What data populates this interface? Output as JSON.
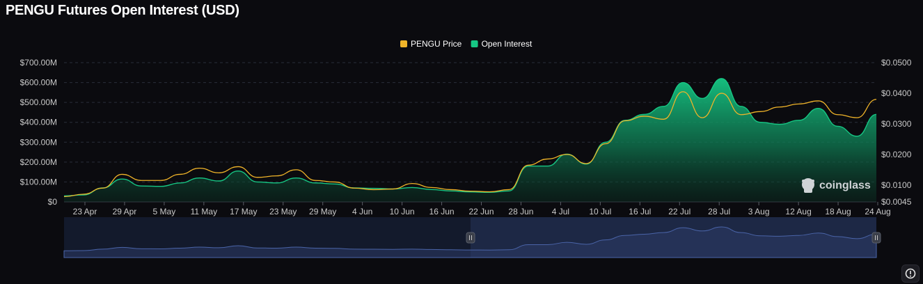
{
  "title": "PENGU Futures Open Interest (USD)",
  "watermark": "coinglass",
  "icons": {
    "watermark": "coinglass-logo-icon",
    "settings": "settings-icon"
  },
  "colors": {
    "background": "#0b0b0f",
    "price_line": "#f0b429",
    "open_interest": "#16c784",
    "navigator_fill": "#1f2a4a",
    "navigator_line": "#3a4f86"
  },
  "chart_data": {
    "type": "area",
    "title": "PENGU Futures Open Interest (USD)",
    "x_tick_labels": [
      "23 Apr",
      "29 Apr",
      "5 May",
      "11 May",
      "17 May",
      "23 May",
      "29 May",
      "4 Jun",
      "10 Jun",
      "16 Jun",
      "22 Jun",
      "28 Jun",
      "4 Jul",
      "10 Jul",
      "16 Jul",
      "22 Jul",
      "28 Jul",
      "3 Aug",
      "12 Aug",
      "18 Aug",
      "24 Aug"
    ],
    "y_left_ticks": [
      "$0",
      "$100.00M",
      "$200.00M",
      "$300.00M",
      "$400.00M",
      "$500.00M",
      "$600.00M",
      "$700.00M"
    ],
    "y_left_range": [
      0,
      700
    ],
    "y_left_unit": "M USD",
    "y_right_ticks": [
      "$0.0045",
      "$0.0100",
      "$0.0200",
      "$0.0300",
      "$0.0400",
      "$0.0500"
    ],
    "y_right_range": [
      0.0045,
      0.05
    ],
    "legend": [
      "PENGU Price",
      "Open Interest"
    ],
    "legend_position": "top-center",
    "grid": true,
    "x": [
      "20 Apr",
      "23 Apr",
      "26 Apr",
      "29 Apr",
      "2 May",
      "5 May",
      "8 May",
      "11 May",
      "14 May",
      "17 May",
      "20 May",
      "23 May",
      "26 May",
      "29 May",
      "1 Jun",
      "4 Jun",
      "7 Jun",
      "10 Jun",
      "13 Jun",
      "16 Jun",
      "19 Jun",
      "22 Jun",
      "25 Jun",
      "28 Jun",
      "1 Jul",
      "4 Jul",
      "7 Jul",
      "10 Jul",
      "13 Jul",
      "16 Jul",
      "19 Jul",
      "22 Jul",
      "25 Jul",
      "28 Jul",
      "31 Jul",
      "3 Aug",
      "6 Aug",
      "9 Aug",
      "12 Aug",
      "15 Aug",
      "18 Aug",
      "21 Aug",
      "24 Aug"
    ],
    "series": [
      {
        "name": "Open Interest",
        "axis": "left",
        "values": [
          30,
          35,
          70,
          115,
          80,
          78,
          95,
          120,
          105,
          155,
          100,
          95,
          120,
          95,
          90,
          70,
          68,
          65,
          72,
          62,
          55,
          50,
          48,
          55,
          180,
          180,
          240,
          190,
          300,
          410,
          440,
          480,
          600,
          520,
          620,
          480,
          400,
          390,
          410,
          470,
          380,
          330,
          440
        ]
      },
      {
        "name": "PENGU Price",
        "axis": "right",
        "values": [
          0.0062,
          0.007,
          0.009,
          0.0135,
          0.0115,
          0.0115,
          0.0135,
          0.0155,
          0.014,
          0.016,
          0.0125,
          0.013,
          0.015,
          0.0115,
          0.011,
          0.009,
          0.0085,
          0.0087,
          0.0105,
          0.0092,
          0.0085,
          0.008,
          0.0078,
          0.0085,
          0.0165,
          0.0185,
          0.02,
          0.017,
          0.0235,
          0.031,
          0.0325,
          0.0315,
          0.0405,
          0.032,
          0.04,
          0.033,
          0.034,
          0.0355,
          0.0365,
          0.0375,
          0.033,
          0.032,
          0.038
        ]
      }
    ]
  }
}
